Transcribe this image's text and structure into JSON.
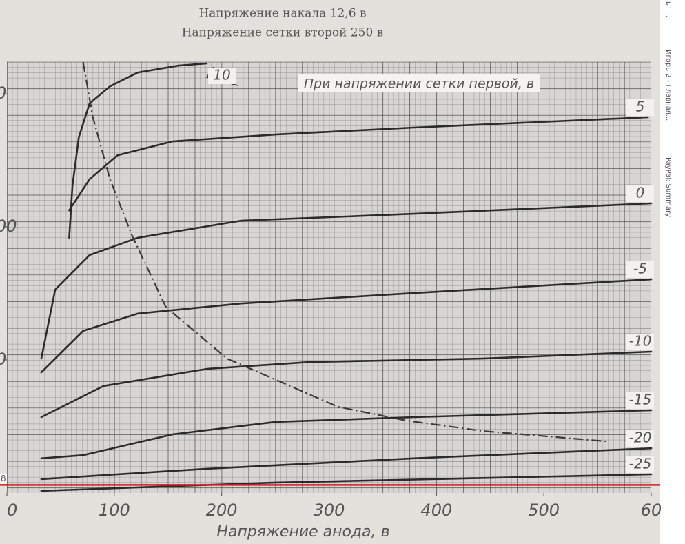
{
  "chart_data": {
    "type": "line",
    "title": "Напряжение накала 12,6 в",
    "subtitle": "Напряжение сетки второй 250 в",
    "annotation": "При напряжении сетки первой, в",
    "xlabel": "Напряжение анода, в",
    "xlim": [
      0,
      600
    ],
    "ylim": [
      0,
      162
    ],
    "xticks": [
      0,
      100,
      200,
      300,
      400,
      500,
      {
        "value": 600,
        "label": "60"
      }
    ],
    "yticks": [
      {
        "value": 50,
        "label": "0"
      },
      {
        "value": 100,
        "label": "00"
      },
      {
        "value": 150,
        "label": "0"
      }
    ],
    "series": [
      {
        "name": "10",
        "color": "#2b2b2b",
        "x": [
          58,
          61,
          67,
          77,
          96,
          122,
          160,
          186
        ],
        "values": [
          95.9,
          115.4,
          133.7,
          146.4,
          152.8,
          158,
          160.6,
          161.4
        ]
      },
      {
        "name": "5",
        "color": "#2b2b2b",
        "x": [
          58,
          77,
          103,
          154,
          250,
          379,
          597
        ],
        "values": [
          106.2,
          117.9,
          126.9,
          132.1,
          134.7,
          137.3,
          141.2
        ]
      },
      {
        "name": "0",
        "color": "#2b2b2b",
        "x": [
          32,
          45,
          77,
          122,
          218,
          379,
          600
        ],
        "values": [
          50.5,
          76.4,
          89.4,
          95.9,
          102.3,
          104.9,
          108.8
        ]
      },
      {
        "name": "-5",
        "color": "#2b2b2b",
        "x": [
          32,
          71,
          122,
          218,
          379,
          600
        ],
        "values": [
          45.3,
          60.9,
          67.4,
          71.2,
          75.1,
          80.3
        ]
      },
      {
        "name": "-10",
        "color": "#2b2b2b",
        "x": [
          32,
          90,
          186,
          282,
          443,
          600
        ],
        "values": [
          28.5,
          40.2,
          46.6,
          49.2,
          50.5,
          53.1
        ]
      },
      {
        "name": "-15",
        "color": "#2b2b2b",
        "x": [
          32,
          71,
          154,
          250,
          379,
          600
        ],
        "values": [
          13,
          14.2,
          22,
          26.7,
          28.5,
          31.1
        ]
      },
      {
        "name": "-20",
        "color": "#2b2b2b",
        "x": [
          32,
          186,
          379,
          600
        ],
        "values": [
          5.2,
          9.1,
          13,
          16.8
        ]
      },
      {
        "name": "-25",
        "color": "#2b2b2b",
        "x": [
          32,
          250,
          600
        ],
        "values": [
          0.8,
          3.9,
          7
        ]
      }
    ],
    "dissipation_curve": {
      "color": "#3a3a3a",
      "x": [
        71,
        80,
        96,
        116,
        148,
        205,
        308,
        372,
        443,
        558
      ],
      "values": [
        161.9,
        141.2,
        117.9,
        97.2,
        69.9,
        50.5,
        32.4,
        27.2,
        23.3,
        19.4
      ]
    },
    "red_line": {
      "label": "8",
      "value": 3,
      "color": "#d42020"
    }
  },
  "sidebar": [
    "ы' ...",
    "Игорь 2 - Главная...",
    "PayPal: Summary"
  ]
}
